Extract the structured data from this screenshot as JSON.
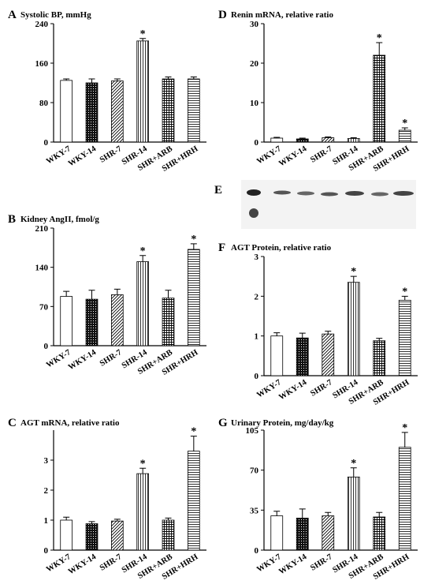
{
  "chart_data": [
    {
      "type": "bar",
      "panel": "A",
      "title": "Systolic BP, mmHg",
      "categories": [
        "WKY-7",
        "WKY-14",
        "SHR-7",
        "SHR-14",
        "SHR+ARB",
        "SHR+HRH"
      ],
      "values": [
        125,
        120,
        124,
        205,
        128,
        128
      ],
      "errors": [
        3,
        8,
        4,
        5,
        4,
        4
      ],
      "patterns": [
        "none",
        "dots",
        "diag",
        "vert",
        "grid",
        "horiz"
      ],
      "significant": [
        false,
        false,
        false,
        true,
        false,
        false
      ],
      "marker": "*",
      "ylim": [
        0,
        240
      ],
      "yticks": [
        0,
        80,
        160,
        240
      ]
    },
    {
      "type": "bar",
      "panel": "B",
      "title": "Kidney AngII, fmol/g",
      "categories": [
        "WKY-7",
        "WKY-14",
        "SHR-7",
        "SHR-14",
        "SHR+ARB",
        "SHR+HRH"
      ],
      "values": [
        88,
        83,
        91,
        150,
        85,
        172
      ],
      "errors": [
        9,
        16,
        10,
        11,
        14,
        10
      ],
      "patterns": [
        "none",
        "dots",
        "diag",
        "vert",
        "grid",
        "horiz"
      ],
      "significant": [
        false,
        false,
        false,
        true,
        false,
        true
      ],
      "marker": "*",
      "ylim": [
        0,
        210
      ],
      "yticks": [
        0,
        70,
        140,
        210
      ]
    },
    {
      "type": "bar",
      "panel": "C",
      "title": "AGT mRNA, relative ratio",
      "categories": [
        "WKY-7",
        "WKY-14",
        "SHR-7",
        "SHR-14",
        "SHR+ARB",
        "SHR+HRH"
      ],
      "values": [
        1.0,
        0.88,
        0.97,
        2.55,
        1.0,
        3.3
      ],
      "errors": [
        0.1,
        0.07,
        0.06,
        0.18,
        0.07,
        0.5
      ],
      "patterns": [
        "none",
        "dots",
        "diag",
        "vert",
        "grid",
        "horiz"
      ],
      "significant": [
        false,
        false,
        false,
        true,
        false,
        true
      ],
      "marker": "*",
      "ylim": [
        0,
        4
      ],
      "yticks": [
        0,
        1,
        2,
        3
      ]
    },
    {
      "type": "bar",
      "panel": "D",
      "title": "Renin mRNA, relative ratio",
      "categories": [
        "WKY-7",
        "WKY-14",
        "SHR-7",
        "SHR-14",
        "SHR+ARB",
        "SHR+HRH"
      ],
      "values": [
        1.0,
        0.8,
        1.1,
        0.9,
        22,
        3.0
      ],
      "errors": [
        0.2,
        0.2,
        0.2,
        0.2,
        3.2,
        0.6
      ],
      "patterns": [
        "none",
        "dots",
        "diag",
        "vert",
        "grid",
        "horiz"
      ],
      "significant": [
        false,
        false,
        false,
        false,
        true,
        true
      ],
      "marker": "*",
      "ylim": [
        0,
        30
      ],
      "yticks": [
        0,
        10,
        20,
        30
      ]
    },
    {
      "type": "bar",
      "panel": "F",
      "title": "AGT Protein, relative ratio",
      "categories": [
        "WKY-7",
        "WKY-14",
        "SHR-7",
        "SHR-14",
        "SHR+ARB",
        "SHR+HRH"
      ],
      "values": [
        1.0,
        0.95,
        1.05,
        2.35,
        0.88,
        1.9
      ],
      "errors": [
        0.08,
        0.12,
        0.07,
        0.15,
        0.06,
        0.1
      ],
      "patterns": [
        "none",
        "dots",
        "diag",
        "vert",
        "grid",
        "horiz"
      ],
      "significant": [
        false,
        false,
        false,
        true,
        false,
        true
      ],
      "marker": "*",
      "ylim": [
        0,
        3
      ],
      "yticks": [
        0,
        1,
        2,
        3
      ]
    },
    {
      "type": "bar",
      "panel": "G",
      "title": "Urinary Protein, mg/day/kg",
      "categories": [
        "WKY-7",
        "WKY-14",
        "SHR-7",
        "SHR-14",
        "SHR+ARB",
        "SHR+HRH"
      ],
      "values": [
        30,
        28,
        30,
        64,
        29,
        90
      ],
      "errors": [
        4,
        8,
        3,
        8,
        4,
        13
      ],
      "patterns": [
        "none",
        "dots",
        "diag",
        "vert",
        "grid",
        "horiz"
      ],
      "significant": [
        false,
        false,
        false,
        true,
        false,
        true
      ],
      "marker": "*",
      "ylim": [
        0,
        105
      ],
      "yticks": [
        0,
        35,
        70,
        105
      ]
    }
  ],
  "blot": {
    "panel": "E"
  }
}
